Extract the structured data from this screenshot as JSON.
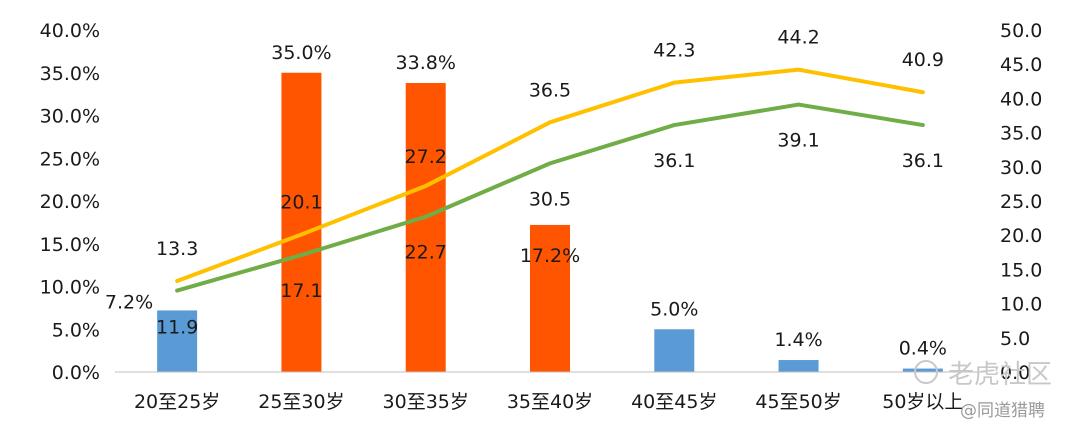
{
  "chart_data": {
    "type": "bar+line",
    "categories": [
      "20至25岁",
      "25至30岁",
      "30至35岁",
      "35至40岁",
      "40至45岁",
      "45至50岁",
      "50岁以上"
    ],
    "bar_series": {
      "values": [
        7.2,
        35.0,
        33.8,
        17.2,
        5.0,
        1.4,
        0.4
      ],
      "labels": [
        "7.2%",
        "35.0%",
        "33.8%",
        "17.2%",
        "5.0%",
        "1.4%",
        "0.4%"
      ],
      "colors": [
        "#5b9bd5",
        "#ff5500",
        "#ff5500",
        "#ff5500",
        "#5b9bd5",
        "#5b9bd5",
        "#5b9bd5"
      ]
    },
    "line_series": [
      {
        "values": [
          13.3,
          20.1,
          27.2,
          36.5,
          42.3,
          44.2,
          40.9
        ],
        "labels": [
          "13.3",
          "20.1",
          "27.2",
          "36.5",
          "42.3",
          "44.2",
          "40.9"
        ],
        "color": "#ffc000"
      },
      {
        "values": [
          11.9,
          17.1,
          22.7,
          30.5,
          36.1,
          39.1,
          36.1
        ],
        "labels": [
          "11.9",
          "17.1",
          "22.7",
          "30.5",
          "36.1",
          "39.1",
          "36.1"
        ],
        "color": "#70ad47"
      }
    ],
    "y_left": {
      "ylim": [
        0,
        40
      ],
      "ticks": [
        "0.0%",
        "5.0%",
        "10.0%",
        "15.0%",
        "20.0%",
        "25.0%",
        "30.0%",
        "35.0%",
        "40.0%"
      ]
    },
    "y_right": {
      "ylim": [
        0,
        50
      ],
      "ticks": [
        "0.0",
        "5.0",
        "10.0",
        "15.0",
        "20.0",
        "25.0",
        "30.0",
        "35.0",
        "40.0",
        "45.0",
        "50.0"
      ]
    },
    "grid": false,
    "legend": "none"
  },
  "watermark": {
    "main": "老虎社区",
    "sub": "@同道猎聘"
  }
}
